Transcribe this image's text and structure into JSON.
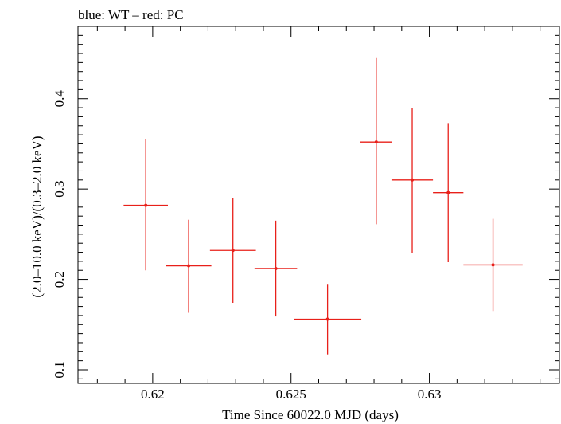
{
  "chart_data": {
    "type": "scatter",
    "title": "blue: WT – red: PC",
    "xlabel": "Time Since 60022.0 MJD (days)",
    "ylabel": "(2.0–10.0 keV)/(0.3–2.0 keV)",
    "xlim": [
      0.6173,
      0.6347
    ],
    "ylim": [
      0.085,
      0.48
    ],
    "x_ticks": [
      0.62,
      0.625,
      0.63
    ],
    "x_tick_labels": [
      "0.62",
      "0.625",
      "0.63"
    ],
    "y_ticks": [
      0.1,
      0.2,
      0.3,
      0.4
    ],
    "y_tick_labels": [
      "0.1",
      "0.2",
      "0.3",
      "0.4"
    ],
    "series": [
      {
        "name": "PC",
        "color": "#e8201a",
        "points": [
          {
            "x": 0.61975,
            "xerr": 0.0008,
            "y": 0.282,
            "ylo": 0.21,
            "yhi": 0.355
          },
          {
            "x": 0.6213,
            "xerr": 0.00082,
            "y": 0.215,
            "ylo": 0.163,
            "yhi": 0.266
          },
          {
            "x": 0.6229,
            "xerr": 0.00083,
            "y": 0.232,
            "ylo": 0.174,
            "yhi": 0.29
          },
          {
            "x": 0.62445,
            "xerr": 0.00077,
            "y": 0.212,
            "ylo": 0.159,
            "yhi": 0.265
          },
          {
            "x": 0.62632,
            "xerr": 0.00122,
            "y": 0.156,
            "ylo": 0.117,
            "yhi": 0.195
          },
          {
            "x": 0.62808,
            "xerr": 0.00057,
            "y": 0.352,
            "ylo": 0.261,
            "yhi": 0.445
          },
          {
            "x": 0.62938,
            "xerr": 0.00075,
            "y": 0.31,
            "ylo": 0.229,
            "yhi": 0.39
          },
          {
            "x": 0.63068,
            "xerr": 0.00055,
            "y": 0.296,
            "ylo": 0.219,
            "yhi": 0.373
          },
          {
            "x": 0.6323,
            "xerr": 0.00107,
            "y": 0.216,
            "ylo": 0.165,
            "yhi": 0.267
          }
        ]
      }
    ],
    "axis_color": "#000000"
  }
}
